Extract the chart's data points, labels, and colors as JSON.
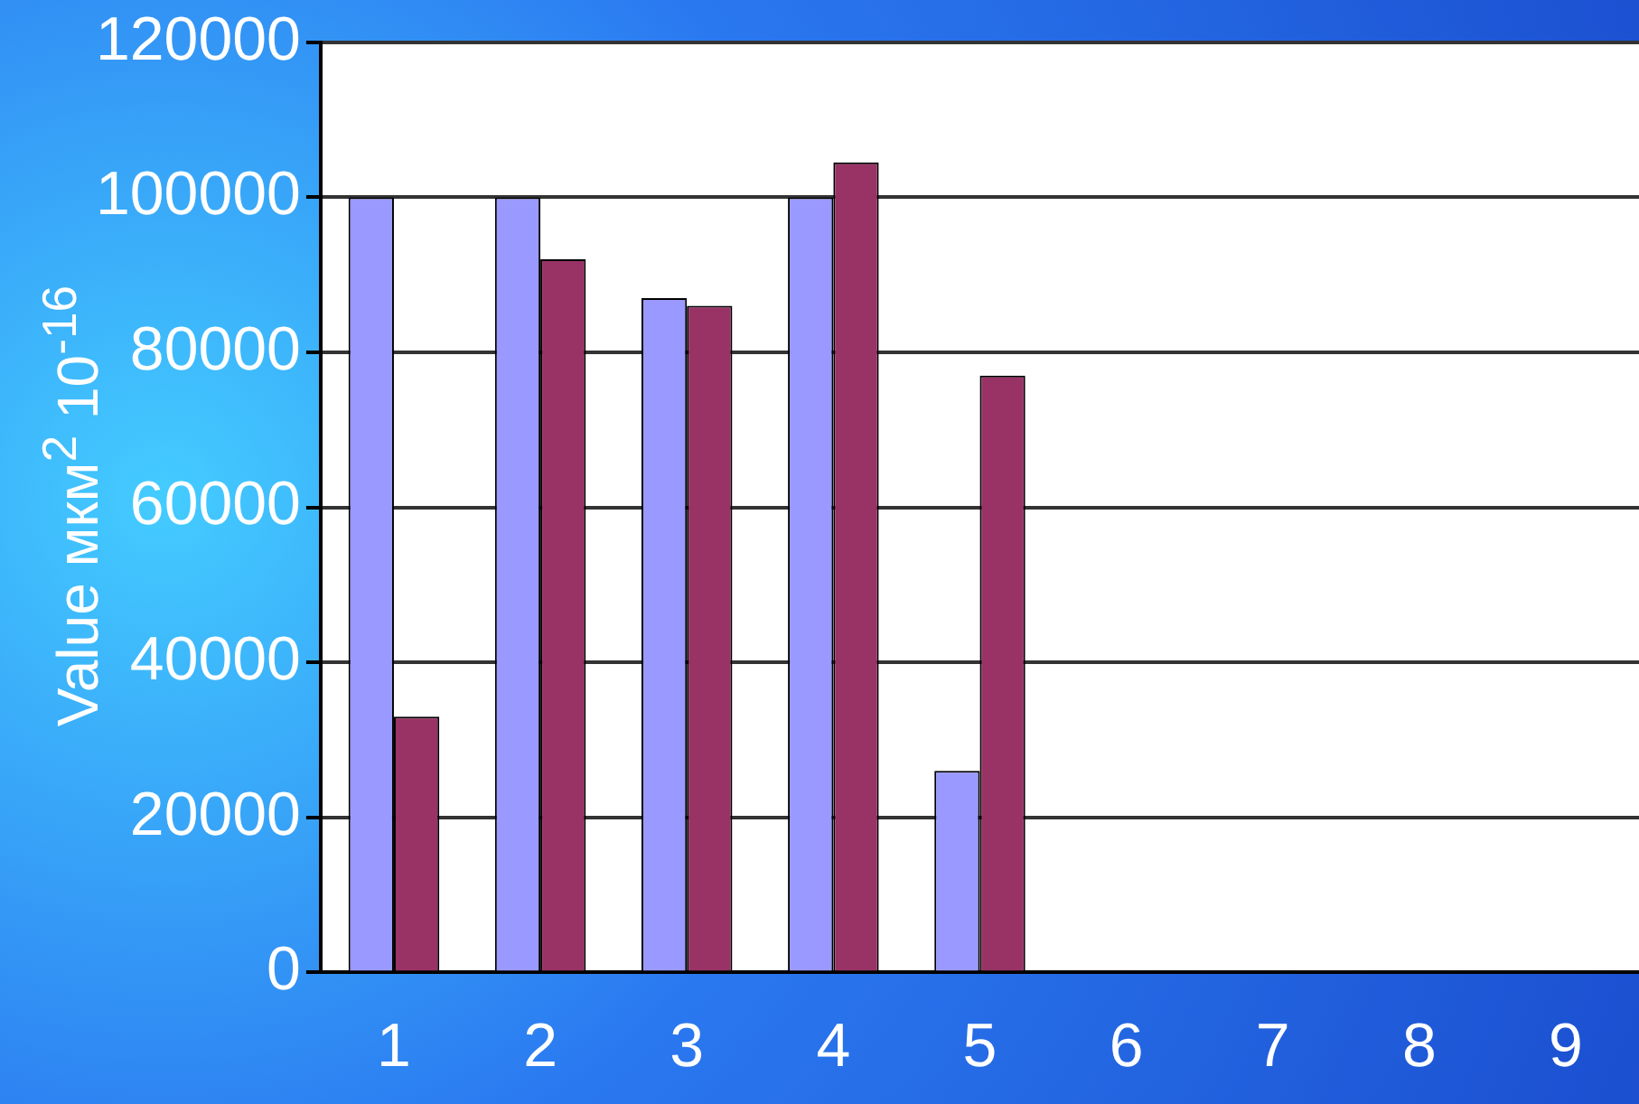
{
  "chart_data": {
    "type": "bar",
    "ylabel": "Value мкм$^{2}$ 10$^{-16}$",
    "categories": [
      "1",
      "2",
      "3",
      "4",
      "5",
      "6",
      "7",
      "8",
      "9"
    ],
    "series": [
      {
        "color": "#9999ff",
        "values": [
          100000,
          100000,
          87000,
          100000,
          26000,
          null,
          null,
          null,
          null
        ]
      },
      {
        "color": "#993366",
        "values": [
          33000,
          92000,
          86000,
          104500,
          77000,
          null,
          null,
          null,
          null
        ]
      }
    ],
    "ylim": [
      0,
      120000
    ],
    "yticks": [
      0,
      20000,
      40000,
      60000,
      80000,
      100000,
      120000
    ],
    "grid": "y",
    "legend": false
  }
}
